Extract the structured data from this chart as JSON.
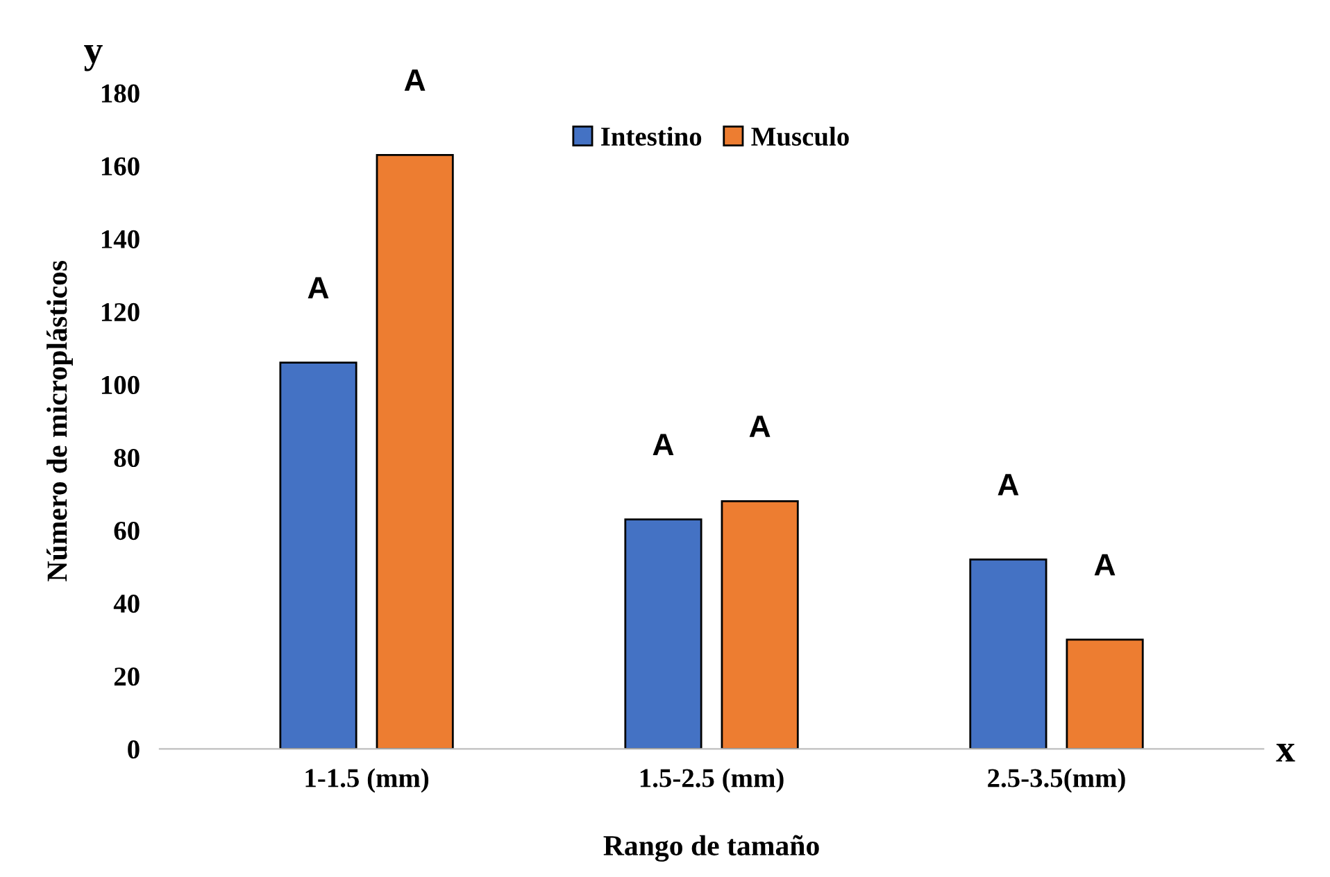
{
  "chart_data": {
    "type": "bar",
    "xlabel": "Rango de tamaño",
    "ylabel": "Número de microplásticos",
    "categories": [
      "1-1.5 (mm)",
      "1.5-2.5 (mm)",
      "2.5-3.5(mm)"
    ],
    "series": [
      {
        "name": "Intestino",
        "color": "#4472c4",
        "values": [
          106,
          63,
          52
        ]
      },
      {
        "name": "Musculo",
        "color": "#ed7d31",
        "values": [
          163,
          68,
          30
        ]
      }
    ],
    "ylim": [
      0,
      180
    ],
    "yticks": [
      0,
      20,
      40,
      60,
      80,
      100,
      120,
      140,
      160,
      180
    ],
    "grid": false,
    "legend": "top",
    "annotations": [
      "y",
      "x",
      "A",
      "A",
      "A",
      "A",
      "A",
      "A"
    ]
  }
}
